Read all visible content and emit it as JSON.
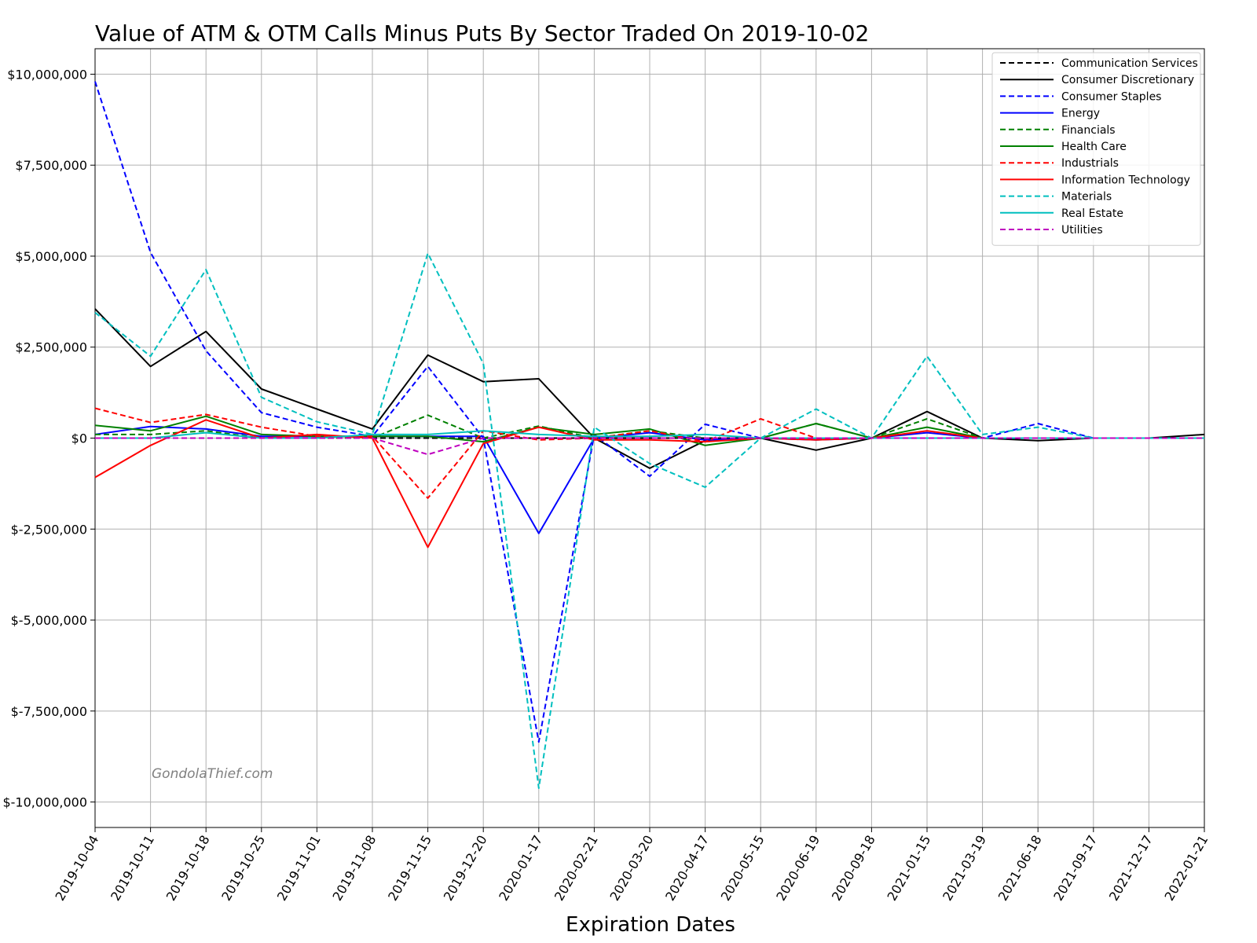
{
  "chart_data": {
    "type": "line",
    "title": "Value of ATM & OTM Calls Minus Puts By Sector Traded On 2019-10-02",
    "xlabel": "Expiration Dates",
    "ylabel": "",
    "watermark": "GondolaThief.com",
    "ylim": [
      -10700000,
      10700000
    ],
    "y_ticks": [
      10000000,
      7500000,
      5000000,
      2500000,
      0,
      -2500000,
      -5000000,
      -7500000,
      -10000000
    ],
    "y_tick_labels": [
      "$10,000,000",
      "$7,500,000",
      "$5,000,000",
      "$2,500,000",
      "$0",
      "$-2,500,000",
      "$-5,000,000",
      "$-7,500,000",
      "$-10,000,000"
    ],
    "grid": true,
    "legend_position": "top-right",
    "categories": [
      "2019-10-04",
      "2019-10-11",
      "2019-10-18",
      "2019-10-25",
      "2019-11-01",
      "2019-11-08",
      "2019-11-15",
      "2019-12-20",
      "2020-01-17",
      "2020-02-21",
      "2020-03-20",
      "2020-04-17",
      "2020-05-15",
      "2020-06-19",
      "2020-09-18",
      "2021-01-15",
      "2021-03-19",
      "2021-06-18",
      "2021-09-17",
      "2021-12-17",
      "2022-01-21"
    ],
    "series": [
      {
        "name": "Communication Services",
        "color": "#000000",
        "dash": true,
        "values": [
          0,
          0,
          0,
          0,
          0,
          0,
          0,
          0,
          0,
          0,
          0,
          0,
          0,
          0,
          0,
          0,
          0,
          0,
          0,
          0,
          0
        ]
      },
      {
        "name": "Consumer Discretionary",
        "color": "#000000",
        "dash": false,
        "values": [
          3550000,
          1970000,
          2930000,
          1350000,
          800000,
          250000,
          2280000,
          1550000,
          1630000,
          0,
          -830000,
          -70000,
          0,
          -330000,
          0,
          730000,
          0,
          -70000,
          0,
          0,
          100000
        ]
      },
      {
        "name": "Consumer Staples",
        "color": "#0000ff",
        "dash": true,
        "values": [
          9800000,
          5100000,
          2400000,
          700000,
          300000,
          50000,
          1970000,
          0,
          -8350000,
          100000,
          -1050000,
          380000,
          0,
          0,
          0,
          0,
          0,
          400000,
          0,
          0,
          0
        ]
      },
      {
        "name": "Energy",
        "color": "#0000ff",
        "dash": false,
        "values": [
          100000,
          320000,
          250000,
          50000,
          50000,
          50000,
          50000,
          50000,
          -2620000,
          0,
          150000,
          -50000,
          0,
          -50000,
          0,
          150000,
          0,
          0,
          0,
          0,
          0
        ]
      },
      {
        "name": "Financials",
        "color": "#008000",
        "dash": true,
        "values": [
          100000,
          100000,
          200000,
          0,
          0,
          0,
          630000,
          0,
          330000,
          0,
          200000,
          0,
          0,
          400000,
          0,
          530000,
          0,
          0,
          0,
          0,
          0
        ]
      },
      {
        "name": "Health Care",
        "color": "#008000",
        "dash": false,
        "values": [
          350000,
          200000,
          600000,
          100000,
          50000,
          50000,
          50000,
          -100000,
          300000,
          100000,
          250000,
          -200000,
          0,
          400000,
          0,
          300000,
          0,
          0,
          0,
          0,
          0
        ]
      },
      {
        "name": "Industrials",
        "color": "#ff0000",
        "dash": true,
        "values": [
          820000,
          430000,
          650000,
          300000,
          50000,
          50000,
          -1650000,
          200000,
          -50000,
          0,
          200000,
          -100000,
          530000,
          0,
          0,
          0,
          0,
          0,
          0,
          0,
          0
        ]
      },
      {
        "name": "Information Technology",
        "color": "#ff0000",
        "dash": false,
        "values": [
          -1080000,
          -200000,
          500000,
          0,
          100000,
          0,
          -3000000,
          -150000,
          300000,
          -50000,
          -50000,
          -100000,
          0,
          -50000,
          0,
          200000,
          0,
          0,
          0,
          0,
          0
        ]
      },
      {
        "name": "Materials",
        "color": "#00bfbf",
        "dash": true,
        "values": [
          3450000,
          2250000,
          4630000,
          1120000,
          450000,
          100000,
          5080000,
          2050000,
          -9620000,
          300000,
          -700000,
          -1350000,
          0,
          800000,
          0,
          2250000,
          100000,
          300000,
          0,
          0,
          0
        ]
      },
      {
        "name": "Real Estate",
        "color": "#00bfbf",
        "dash": false,
        "values": [
          0,
          0,
          150000,
          0,
          0,
          100000,
          100000,
          200000,
          100000,
          50000,
          50000,
          100000,
          0,
          0,
          0,
          0,
          0,
          0,
          0,
          0,
          0
        ]
      },
      {
        "name": "Utilities",
        "color": "#bf00bf",
        "dash": true,
        "values": [
          0,
          0,
          0,
          0,
          0,
          0,
          -450000,
          0,
          0,
          0,
          0,
          0,
          0,
          0,
          0,
          0,
          0,
          0,
          0,
          0,
          0
        ]
      }
    ]
  }
}
